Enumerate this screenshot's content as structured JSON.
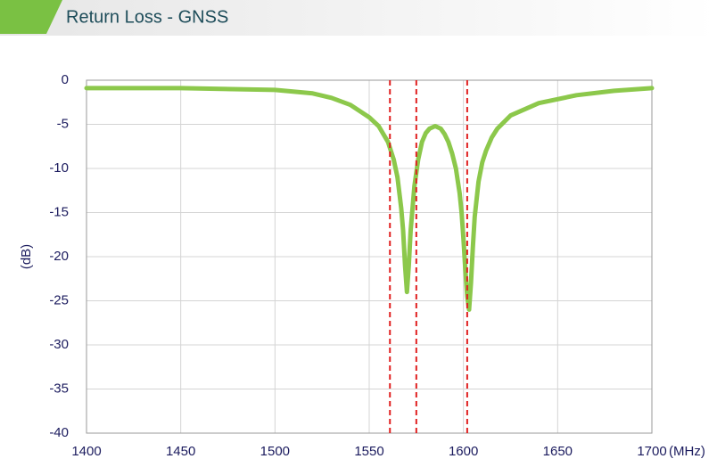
{
  "chart_data": {
    "type": "line",
    "title": "Return Loss - GNSS",
    "xlabel": "(MHz)",
    "ylabel": "(dB)",
    "x": [
      1400,
      1450,
      1500,
      1520,
      1530,
      1540,
      1550,
      1555,
      1560,
      1563,
      1565,
      1567,
      1568,
      1569,
      1570,
      1571,
      1572,
      1574,
      1576,
      1578,
      1580,
      1582,
      1585,
      1588,
      1590,
      1592,
      1594,
      1596,
      1598,
      1599,
      1600,
      1601,
      1602,
      1603,
      1604,
      1605,
      1606,
      1608,
      1610,
      1612,
      1615,
      1618,
      1625,
      1640,
      1660,
      1680,
      1700
    ],
    "values": [
      -0.9,
      -0.9,
      -1.1,
      -1.5,
      -2.0,
      -2.8,
      -4.2,
      -5.2,
      -7.0,
      -9.0,
      -11.0,
      -14.5,
      -17.0,
      -21.0,
      -24.0,
      -21.0,
      -17.0,
      -12.0,
      -9.0,
      -7.0,
      -6.0,
      -5.5,
      -5.2,
      -5.5,
      -6.1,
      -7.0,
      -8.3,
      -10.0,
      -12.8,
      -15.0,
      -18.0,
      -21.5,
      -24.5,
      -26.0,
      -23.0,
      -19.0,
      -15.5,
      -11.5,
      -9.3,
      -8.0,
      -6.5,
      -5.5,
      -4.0,
      -2.6,
      -1.7,
      -1.2,
      -0.9
    ],
    "color": "#8cc84b",
    "markers": [
      1561,
      1575,
      1602
    ],
    "marker_color": "#e02020",
    "xlim": [
      1400,
      1700
    ],
    "xticks": [
      1400,
      1450,
      1500,
      1550,
      1600,
      1650,
      1700
    ],
    "ylim": [
      -40,
      0
    ],
    "yticks": [
      0,
      -5,
      -10,
      -15,
      -20,
      -25,
      -30,
      -35,
      -40
    ],
    "grid": true
  }
}
